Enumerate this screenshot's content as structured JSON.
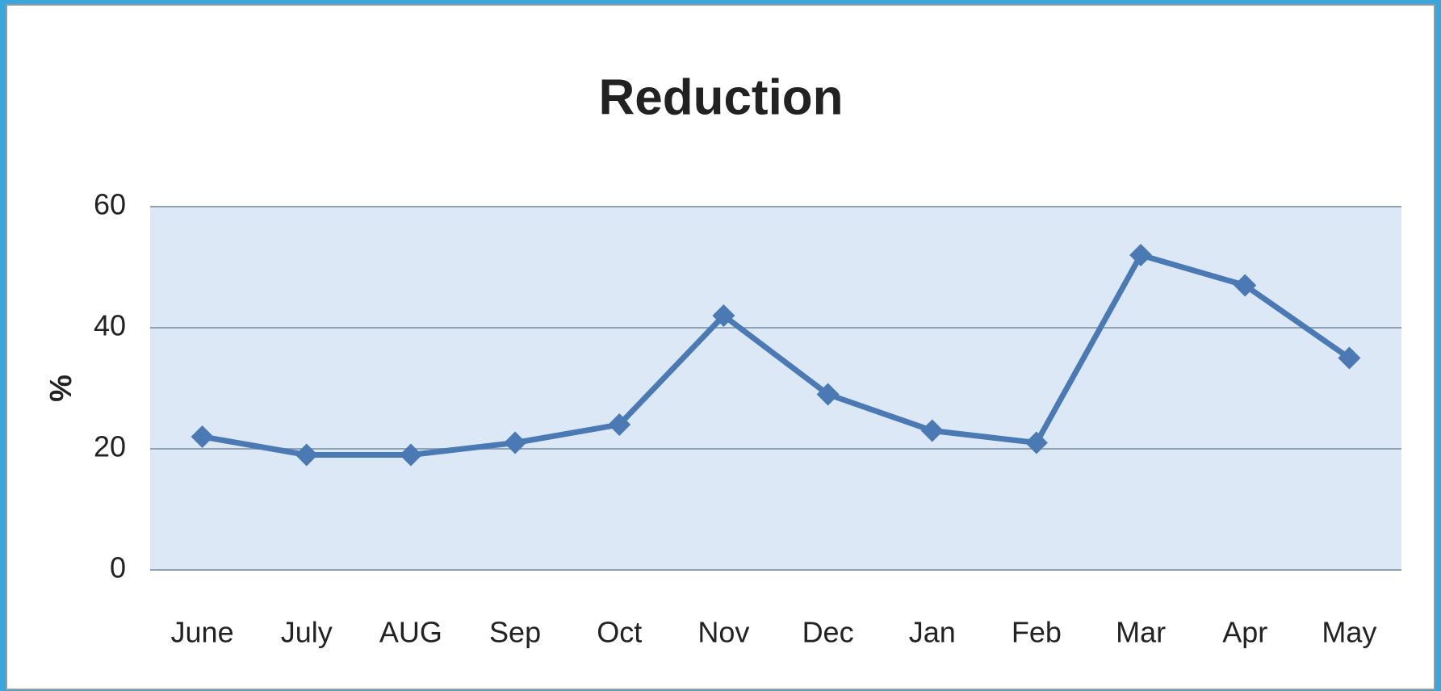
{
  "chart_data": {
    "type": "line",
    "title": "Reduction",
    "y_label": "%",
    "categories": [
      "June",
      "July",
      "AUG",
      "Sep",
      "Oct",
      "Nov",
      "Dec",
      "Jan",
      "Feb",
      "Mar",
      "Apr",
      "May"
    ],
    "values": [
      22,
      19,
      19,
      21,
      24,
      42,
      29,
      23,
      21,
      52,
      47,
      35
    ],
    "color": "#4a79b4",
    "ylim": [
      0,
      60
    ],
    "yticks": [
      0,
      20,
      40,
      60
    ],
    "grid": true
  }
}
